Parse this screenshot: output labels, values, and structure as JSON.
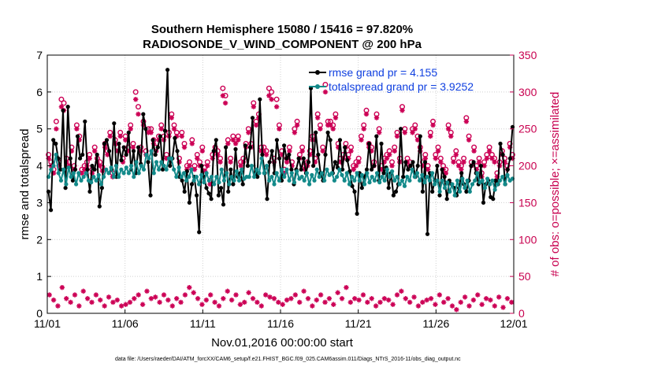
{
  "chart_data": {
    "type": "line",
    "title": "Southern Hemisphere 15080 / 15416 = 97.820%",
    "subtitle": "RADIOSONDE_V_WIND_COMPONENT @ 200 hPa",
    "xlabel": "Nov.01,2016 00:00:00 start",
    "ylabel": "rmse and totalspread",
    "ylabel_right": "# of obs: o=possible; ×=assimilated",
    "footnote": "data file: /Users/raeder/DAI/ATM_forcXX/CAM6_setup/f.e21.FHIST_BGC.f09_025.CAM6assim.011/Diags_NTrS_2016-11/obs_diag_output.nc",
    "x_ticks": [
      "11/01",
      "11/06",
      "11/11",
      "11/16",
      "11/21",
      "11/26",
      "12/01"
    ],
    "y_ticks": [
      "0",
      "1",
      "2",
      "3",
      "4",
      "5",
      "6",
      "7"
    ],
    "y_right_ticks": [
      "0",
      "50",
      "100",
      "150",
      "200",
      "250",
      "300",
      "350"
    ],
    "ylim": [
      0,
      7
    ],
    "ylim_right": [
      0,
      350
    ],
    "xlim_days": [
      0,
      30
    ],
    "colors": {
      "rmse": "#000000",
      "spread": "#138a8a",
      "obs": "#cc0055",
      "legend_text": "#1040e0",
      "grid": "#d0d0d0"
    },
    "series": [
      {
        "name": "rmse grand pr = 4.155",
        "color": "#000000",
        "values": [
          3.3,
          2.8,
          4.7,
          4.6,
          4.2,
          3.9,
          5.5,
          3.4,
          5.6,
          4.2,
          3.6,
          3.9,
          4.8,
          4.2,
          4.3,
          5.2,
          3.9,
          3.3,
          4.0,
          3.9,
          4.3,
          2.9,
          3.4,
          4.6,
          4.7,
          4.4,
          3.9,
          5.15,
          3.7,
          4.6,
          4.15,
          4.5,
          4.3,
          4.9,
          3.9,
          4.4,
          3.8,
          4.5,
          4.05,
          5.4,
          5.0,
          4.1,
          3.2,
          4.7,
          4.3,
          4.5,
          4.8,
          3.9,
          4.95,
          6.6,
          4.0,
          4.2,
          4.75,
          4.4,
          3.7,
          3.6,
          3.3,
          3.85,
          3.0,
          3.5,
          3.7,
          3.2,
          2.2,
          4.0,
          3.7,
          3.4,
          3.25,
          3.1,
          4.4,
          4.7,
          3.2,
          3.4,
          2.95,
          4.5,
          3.3,
          3.9,
          3.5,
          4.45,
          3.7,
          3.8,
          3.5,
          4.55,
          4.0,
          4.5,
          5.3,
          3.8,
          3.7,
          5.8,
          4.3,
          3.8,
          3.1,
          4.1,
          4.4,
          3.8,
          4.7,
          4.2,
          3.6,
          4.55,
          4.2,
          4.3,
          3.9,
          3.5,
          3.9,
          4.2,
          3.9,
          4.2,
          3.8,
          4.1,
          6.1,
          4.0,
          4.9,
          4.3,
          3.8,
          3.6,
          4.3,
          4.9,
          4.7,
          3.8,
          4.1,
          3.95,
          4.7,
          3.9,
          4.5,
          4.15,
          3.85,
          3.45,
          3.3,
          2.7,
          3.8,
          3.4,
          3.7,
          3.9,
          4.6,
          3.9,
          4.0,
          4.8,
          3.6,
          4.6,
          3.8,
          3.95,
          3.4,
          3.8,
          3.2,
          3.3,
          3.5,
          5.0,
          3.7,
          4.1,
          3.9,
          4.0,
          4.1,
          3.7,
          4.0,
          4.8,
          3.3,
          4.1,
          2.15,
          3.8,
          3.3,
          3.6,
          4.0,
          3.2,
          3.9,
          3.7,
          3.1,
          3.6,
          3.5,
          3.4,
          3.2,
          3.4,
          3.8,
          3.5,
          3.3,
          3.6,
          4.0,
          4.1,
          3.8,
          3.5,
          4.0,
          3.0,
          3.5,
          3.6,
          3.15,
          3.1,
          3.6,
          3.5,
          4.6,
          4.3,
          3.5,
          3.9,
          4.2,
          5.05
        ]
      },
      {
        "name": "totalspread grand pr = 3.9252",
        "color": "#138a8a",
        "values": [
          3.7,
          3.9,
          4.0,
          4.3,
          3.8,
          3.6,
          3.9,
          3.5,
          3.95,
          3.7,
          3.8,
          3.5,
          3.8,
          3.6,
          3.7,
          3.8,
          3.6,
          3.55,
          3.7,
          3.6,
          3.75,
          3.5,
          3.7,
          3.9,
          3.8,
          3.95,
          3.7,
          4.0,
          3.7,
          3.9,
          3.8,
          3.95,
          3.8,
          4.0,
          3.7,
          4.1,
          3.8,
          4.0,
          3.9,
          4.3,
          4.2,
          4.4,
          3.8,
          4.1,
          3.9,
          4.1,
          4.0,
          3.9,
          4.2,
          4.2,
          3.9,
          3.7,
          3.95,
          3.7,
          3.8,
          3.6,
          3.7,
          3.9,
          3.6,
          3.7,
          3.5,
          3.75,
          3.55,
          3.8,
          3.6,
          3.7,
          3.5,
          3.7,
          3.55,
          3.9,
          3.6,
          3.8,
          3.5,
          3.7,
          3.6,
          3.85,
          3.6,
          3.9,
          3.65,
          3.7,
          3.7,
          4.0,
          3.7,
          3.9,
          3.8,
          4.2,
          3.8,
          4.0,
          3.6,
          3.7,
          3.5,
          3.8,
          3.6,
          3.9,
          3.7,
          3.9,
          3.6,
          3.8,
          3.55,
          3.85,
          3.65,
          3.7,
          3.6,
          3.8,
          3.5,
          3.75,
          3.6,
          3.9,
          3.7,
          3.8,
          3.6,
          3.9,
          3.75,
          3.8,
          3.6,
          3.7,
          3.9,
          3.75,
          3.6,
          3.8,
          3.5,
          3.7,
          3.6,
          3.8,
          3.6,
          3.75,
          3.5,
          3.8,
          3.55,
          3.7,
          3.6,
          3.8,
          3.55,
          3.7,
          3.6,
          3.9,
          3.7,
          3.85,
          3.6,
          3.7,
          3.5,
          3.6,
          3.45,
          3.7,
          3.6,
          3.9,
          3.7,
          3.8,
          3.6,
          3.75,
          3.55,
          3.7,
          3.6,
          3.8,
          3.5,
          3.6,
          3.3,
          3.6,
          3.4,
          3.55,
          3.3,
          3.5,
          3.2,
          3.6,
          3.3,
          3.65,
          3.4,
          3.6,
          3.3,
          3.5,
          3.6,
          3.8,
          3.55,
          3.6,
          3.4,
          3.65,
          3.5,
          3.6,
          3.35,
          3.5,
          3.6,
          3.7,
          3.5,
          3.75,
          3.6,
          3.65
        ]
      },
      {
        "name": "# obs possible",
        "marker": "o",
        "color": "#cc0055",
        "values": [
          215,
          205,
          195,
          260,
          205,
          290,
          285,
          210,
          205,
          225,
          200,
          255,
          240,
          195,
          200,
          205,
          215,
          195,
          225,
          210,
          205,
          198,
          230,
          220,
          245,
          190,
          235,
          225,
          245,
          210,
          240,
          225,
          255,
          230,
          300,
          280,
          225,
          260,
          220,
          250,
          250,
          235,
          225,
          240,
          255,
          240,
          215,
          245,
          270,
          255,
          245,
          210,
          245,
          230,
          200,
          205,
          235,
          200,
          215,
          205,
          225,
          198,
          205,
          180,
          215,
          225,
          220,
          210,
          305,
          295,
          235,
          210,
          240,
          235,
          240,
          205,
          210,
          230,
          250,
          230,
          285,
          260,
          270,
          225,
          225,
          220,
          305,
          300,
          210,
          290,
          255,
          220,
          195,
          210,
          225,
          205,
          250,
          260,
          215,
          225,
          200,
          205,
          220,
          240,
          210,
          270,
          255,
          225,
          310,
          260,
          260,
          255,
          270,
          230,
          210,
          215,
          230,
          215,
          225,
          200,
          205,
          210,
          240,
          255,
          275,
          230,
          225,
          205,
          270,
          250,
          200,
          210,
          215,
          220,
          205,
          225,
          245,
          210,
          280,
          250,
          210,
          205,
          250,
          255,
          240,
          225,
          205,
          215,
          200,
          245,
          260,
          215,
          225,
          210,
          200,
          195,
          255,
          245,
          210,
          220,
          205,
          200,
          210,
          265,
          240,
          205,
          225,
          200,
          210,
          190,
          205,
          215,
          225,
          215,
          210,
          190,
          205,
          220,
          210,
          200,
          230,
          215
        ]
      },
      {
        "name": "# obs assimilated",
        "marker": "x",
        "color": "#cc0055",
        "values": [
          210,
          200,
          190,
          250,
          200,
          280,
          275,
          205,
          200,
          220,
          195,
          250,
          235,
          190,
          195,
          200,
          210,
          190,
          220,
          205,
          200,
          193,
          225,
          215,
          240,
          185,
          230,
          220,
          240,
          205,
          235,
          220,
          250,
          225,
          290,
          270,
          220,
          255,
          215,
          245,
          245,
          230,
          220,
          235,
          250,
          235,
          210,
          240,
          265,
          250,
          240,
          205,
          240,
          225,
          195,
          200,
          230,
          195,
          210,
          200,
          220,
          193,
          200,
          175,
          210,
          220,
          215,
          205,
          295,
          285,
          230,
          205,
          235,
          230,
          235,
          200,
          205,
          225,
          245,
          225,
          280,
          255,
          265,
          220,
          220,
          215,
          295,
          290,
          205,
          280,
          250,
          215,
          190,
          205,
          220,
          200,
          245,
          255,
          210,
          220,
          195,
          200,
          215,
          235,
          205,
          265,
          250,
          220,
          300,
          255,
          255,
          250,
          265,
          225,
          205,
          210,
          225,
          210,
          220,
          195,
          200,
          205,
          235,
          250,
          270,
          225,
          220,
          200,
          265,
          245,
          195,
          205,
          210,
          215,
          200,
          220,
          240,
          205,
          275,
          245,
          205,
          200,
          245,
          250,
          235,
          220,
          200,
          210,
          195,
          240,
          255,
          210,
          220,
          205,
          195,
          190,
          250,
          240,
          205,
          215,
          200,
          195,
          205,
          260,
          235,
          200,
          220,
          195,
          205,
          185,
          200,
          210,
          220,
          210,
          205,
          185,
          200,
          215,
          205,
          195,
          225,
          210
        ]
      },
      {
        "name": "# obs low",
        "marker": "x",
        "color": "#cc0055",
        "values": [
          25,
          18,
          10,
          35,
          20,
          15,
          25,
          10,
          30,
          20,
          15,
          25,
          18,
          10,
          22,
          15,
          18,
          10,
          12,
          15,
          20,
          25,
          12,
          30,
          20,
          22,
          15,
          25,
          18,
          10,
          20,
          15,
          25,
          35,
          28,
          20,
          12,
          18,
          25,
          15,
          10,
          20,
          30,
          18,
          25,
          12,
          15,
          28,
          20,
          15,
          10,
          25,
          22,
          20,
          15,
          12,
          18,
          20,
          25,
          15,
          30,
          20,
          10,
          18,
          25,
          15,
          20,
          12,
          28,
          20,
          35,
          15,
          20,
          18,
          25,
          15,
          20,
          10,
          15,
          20,
          18,
          12,
          25,
          30,
          20,
          15,
          22,
          10,
          15,
          18,
          20,
          12,
          25,
          15,
          20,
          10,
          5,
          15,
          22,
          10,
          18,
          25,
          12,
          20,
          18,
          10,
          22,
          8,
          20,
          15
        ]
      }
    ],
    "legend": {
      "position": "top-right"
    }
  }
}
